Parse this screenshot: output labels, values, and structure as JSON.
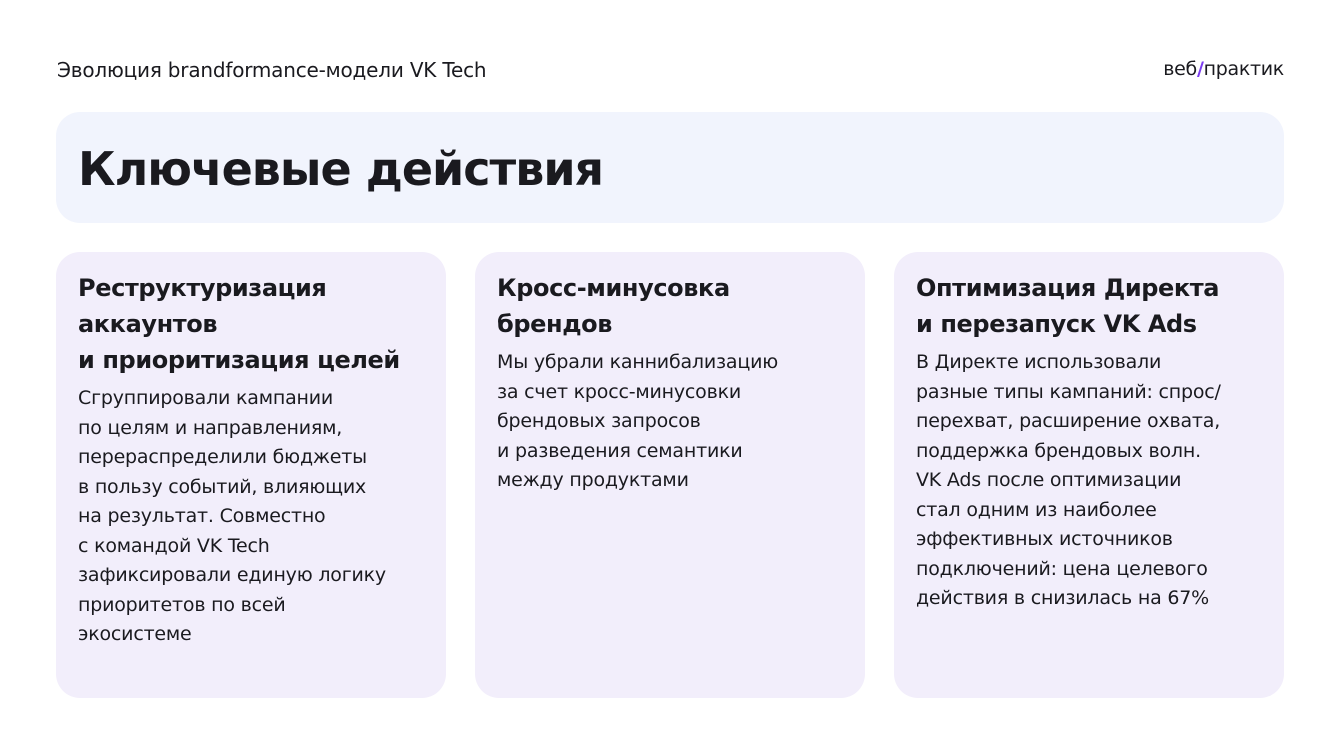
{
  "header": {
    "title": "Эволюция brandformance-модели VK Tech",
    "logo_text": "веб/практик",
    "logo_parts": [
      "веб",
      "/",
      "практик"
    ],
    "logo_accent_color": "#7b3cf0"
  },
  "hero": {
    "title": "Ключевые действия",
    "background": "#f1f4fd"
  },
  "card_background": "#f2eefb",
  "cards": [
    {
      "title": "Реструктуризация\nаккаунтов\nи приоритизация целей",
      "text": "Сгруппировали кампании\nпо целям и направлениям,\nперераспределили бюджеты\nв пользу событий, влияющих\nна результат. Совместно\nс командой VK Tech\nзафиксировали единую логику\nприоритетов по всей\nэкосистеме"
    },
    {
      "title": "Кросс-минусовка\nбрендов",
      "text": "Мы убрали каннибализацию\nза счет кросс-минусовки\nбрендовых запросов\nи разведения семантики\nмежду продуктами"
    },
    {
      "title": "Оптимизация Директа\nи перезапуск VK Ads",
      "text": "В Директе использовали\nразные типы кампаний: спрос/\nперехват, расширение охвата,\nподдержка брендовых волн.\nVK Ads после оптимизации\nстал одним из наиболее\nэффективных источников\nподключений: цена целевого\nдействия в снизилась на 67%"
    }
  ]
}
